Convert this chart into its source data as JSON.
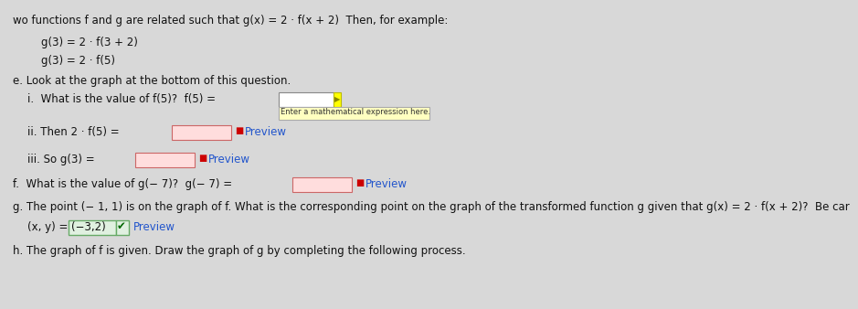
{
  "bg_color": "#d8d8d8",
  "title_line": "wo functions f and g are related such that g(x) = 2 · f(x + 2)  Then, for example:",
  "example_line1": "g(3) = 2 · f(3 + 2)",
  "example_line2": "g(3) = 2 · f(5)",
  "section_e": "e. Look at the graph at the bottom of this question.",
  "part_i_label": "i.  What is the value of f(5)?  f(5) =",
  "hint_text": "Enter a mathematical expression here.",
  "part_ii_label": "ii. Then 2 · f(5) =",
  "preview_text": "Preview",
  "required_star": "■",
  "required_color": "#cc0000",
  "part_iii_label": "iii. So g(3) =",
  "section_f": "f.  What is the value of g(− 7)?  g(− 7) =",
  "section_g": "g. The point (− 1, 1) is on the graph of f. What is the corresponding point on the graph of the transformed function g given that g(x) = 2 · f(x + 2)?  Be car",
  "answer_xy": "(x, y) =",
  "answer_val": "(−3,2)",
  "answer_check": "✔",
  "check_color": "#006600",
  "section_h": "h. The graph of f is given. Draw the graph of g by completing the following process.",
  "font_size_main": 8.0,
  "text_color": "#111111",
  "preview_color": "#2255cc"
}
